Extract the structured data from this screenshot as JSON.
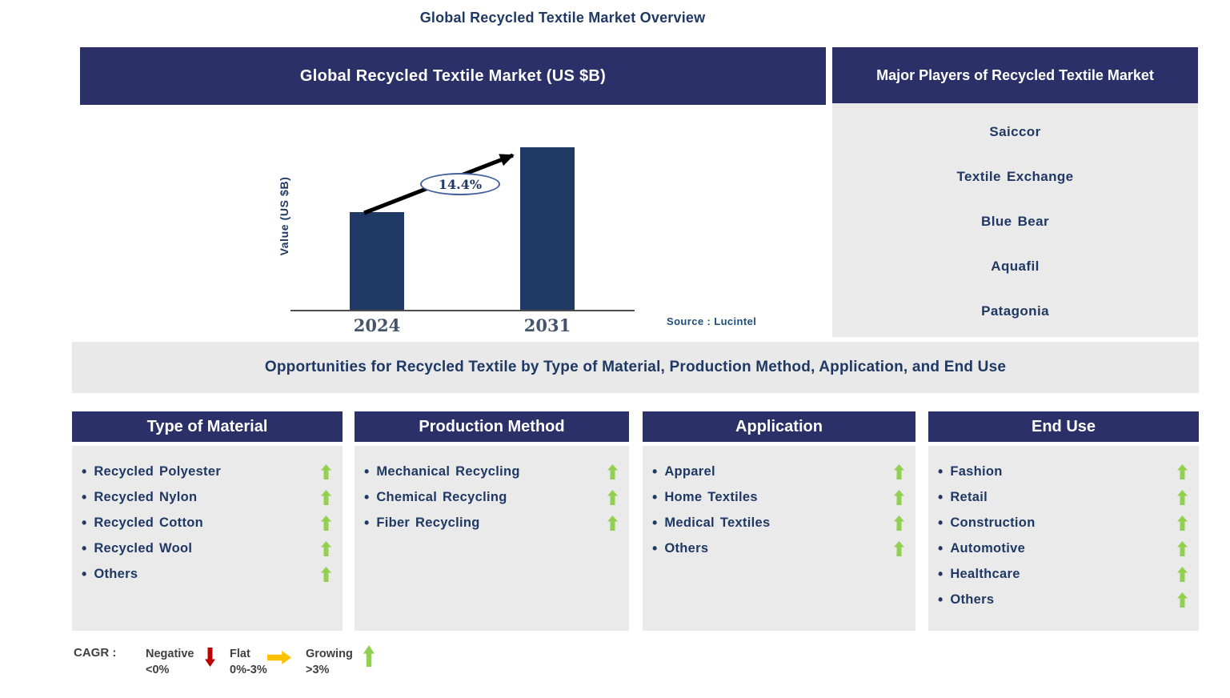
{
  "title": "Global Recycled Textile Market Overview",
  "chart_panel": {
    "header": "Global Recycled Textile Market (US $B)",
    "ylabel": "Value (US $B)",
    "source": "Source : Lucintel"
  },
  "chart_data": {
    "type": "bar",
    "title": "Global Recycled Textile Market (US $B)",
    "categories": [
      "2024",
      "2031"
    ],
    "values_relative": [
      0.6,
      1.0
    ],
    "value_labels_shown": false,
    "ylabel": "Value (US $B)",
    "cagr_annotation": "14.4%",
    "bar_color": "#1F3864",
    "legend_position": "none",
    "grid": false,
    "source": "Source : Lucintel"
  },
  "players_panel": {
    "header": "Major Players of Recycled Textile Market",
    "players": [
      "Saiccor",
      "Textile Exchange",
      "Blue Bear",
      "Aquafil",
      "Patagonia"
    ]
  },
  "banner": "Opportunities for Recycled Textile by Type of Material, Production Method, Application, and End Use",
  "segments": [
    {
      "title": "Type of Material",
      "items": [
        "Recycled Polyester",
        "Recycled Nylon",
        "Recycled Cotton",
        "Recycled Wool",
        "Others"
      ],
      "trend": [
        "up",
        "up",
        "up",
        "up",
        "up"
      ]
    },
    {
      "title": "Production Method",
      "items": [
        "Mechanical Recycling",
        "Chemical Recycling",
        "Fiber Recycling"
      ],
      "trend": [
        "up",
        "up",
        "up"
      ]
    },
    {
      "title": "Application",
      "items": [
        "Apparel",
        "Home Textiles",
        "Medical Textiles",
        "Others"
      ],
      "trend": [
        "up",
        "up",
        "up",
        "up"
      ]
    },
    {
      "title": "End Use",
      "items": [
        "Fashion",
        "Retail",
        "Construction",
        "Automotive",
        "Healthcare",
        "Others"
      ],
      "trend": [
        "up",
        "up",
        "up",
        "up",
        "up",
        "up"
      ]
    }
  ],
  "legend": {
    "label": "CAGR :",
    "entries": [
      {
        "name": "Negative",
        "range": "<0%",
        "direction": "down",
        "color": "#C00000"
      },
      {
        "name": "Flat",
        "range": "0%-3%",
        "direction": "right",
        "color": "#FFC000"
      },
      {
        "name": "Growing",
        "range": ">3%",
        "direction": "up",
        "color": "#92D050"
      }
    ]
  },
  "colors": {
    "header_navy": "#2B3068",
    "bar_navy": "#1F3864",
    "text_navy": "#1F3864",
    "panel_gray": "#EAEAEA",
    "growing_green": "#92D050",
    "negative_red": "#C00000",
    "flat_yellow": "#FFC000"
  }
}
